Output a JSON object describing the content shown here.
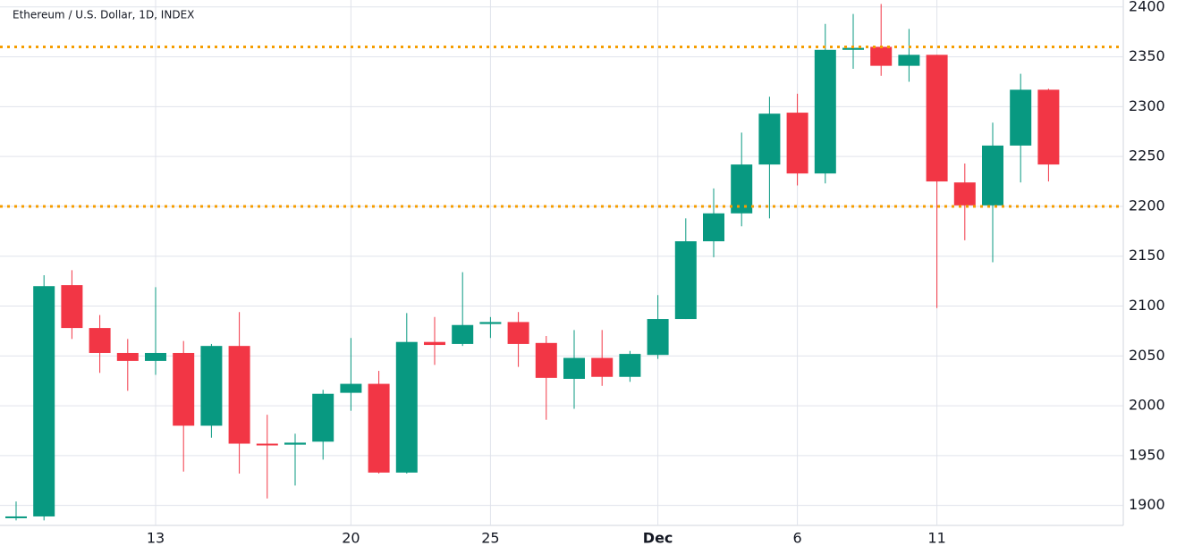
{
  "chart_data": {
    "type": "candlestick",
    "title": "Ethereum / U.S. Dollar, 1D, INDEX",
    "categories": [
      null,
      null,
      null,
      null,
      null,
      "13",
      null,
      null,
      null,
      null,
      null,
      null,
      "20",
      null,
      null,
      null,
      null,
      "25",
      null,
      null,
      null,
      null,
      null,
      "Dec",
      null,
      null,
      null,
      null,
      "6",
      null,
      null,
      null,
      null,
      "11",
      null,
      null,
      null,
      null
    ],
    "series": [
      {
        "up_color": "#089981",
        "down_color": "#f23645",
        "open": [
          1888,
          1889,
          2121,
          2078,
          2053,
          2045,
          2053,
          1980,
          2060,
          1962,
          1961,
          1964,
          2013,
          2022,
          1933,
          2064,
          2062,
          2082,
          2084,
          2063,
          2027,
          2048,
          2029,
          2051,
          2087,
          2165,
          2193,
          2242,
          2294,
          2233,
          2357,
          2360,
          2341,
          2352,
          2224,
          2201,
          2261,
          2317
        ],
        "high": [
          1904,
          2131,
          2136,
          2091,
          2067,
          2119,
          2065,
          2062,
          2094,
          1991,
          1972,
          2016,
          2068,
          2035,
          2093,
          2089,
          2134,
          2089,
          2094,
          2070,
          2076,
          2076,
          2055,
          2111,
          2188,
          2218,
          2274,
          2310,
          2313,
          2383,
          2393,
          2403,
          2378,
          2352,
          2243,
          2284,
          2333,
          2318
        ],
        "low": [
          1885,
          1885,
          2067,
          2033,
          2015,
          2031,
          1934,
          1968,
          1932,
          1907,
          1920,
          1946,
          1995,
          1932,
          1932,
          2041,
          2060,
          2068,
          2039,
          1986,
          1997,
          2020,
          2024,
          2047,
          2087,
          2149,
          2180,
          2188,
          2221,
          2223,
          2338,
          2331,
          2325,
          2098,
          2166,
          2144,
          2224,
          2225
        ],
        "close": [
          1889,
          2120,
          2078,
          2053,
          2045,
          2053,
          1980,
          2060,
          1962,
          1961,
          1963,
          2012,
          2022,
          1933,
          2064,
          2061,
          2081,
          2084,
          2062,
          2028,
          2048,
          2029,
          2052,
          2087,
          2165,
          2193,
          2242,
          2293,
          2233,
          2357,
          2359,
          2341,
          2352,
          2225,
          2201,
          2261,
          2317,
          2242
        ]
      }
    ],
    "horizontal_lines": [
      {
        "value": 2360,
        "color": "#f59d00"
      },
      {
        "value": 2200,
        "color": "#f59d00"
      }
    ],
    "ylim": [
      1880,
      2407
    ],
    "yticks": [
      1900,
      1950,
      2000,
      2050,
      2100,
      2150,
      2200,
      2250,
      2300,
      2350,
      2400
    ],
    "grid": true
  }
}
